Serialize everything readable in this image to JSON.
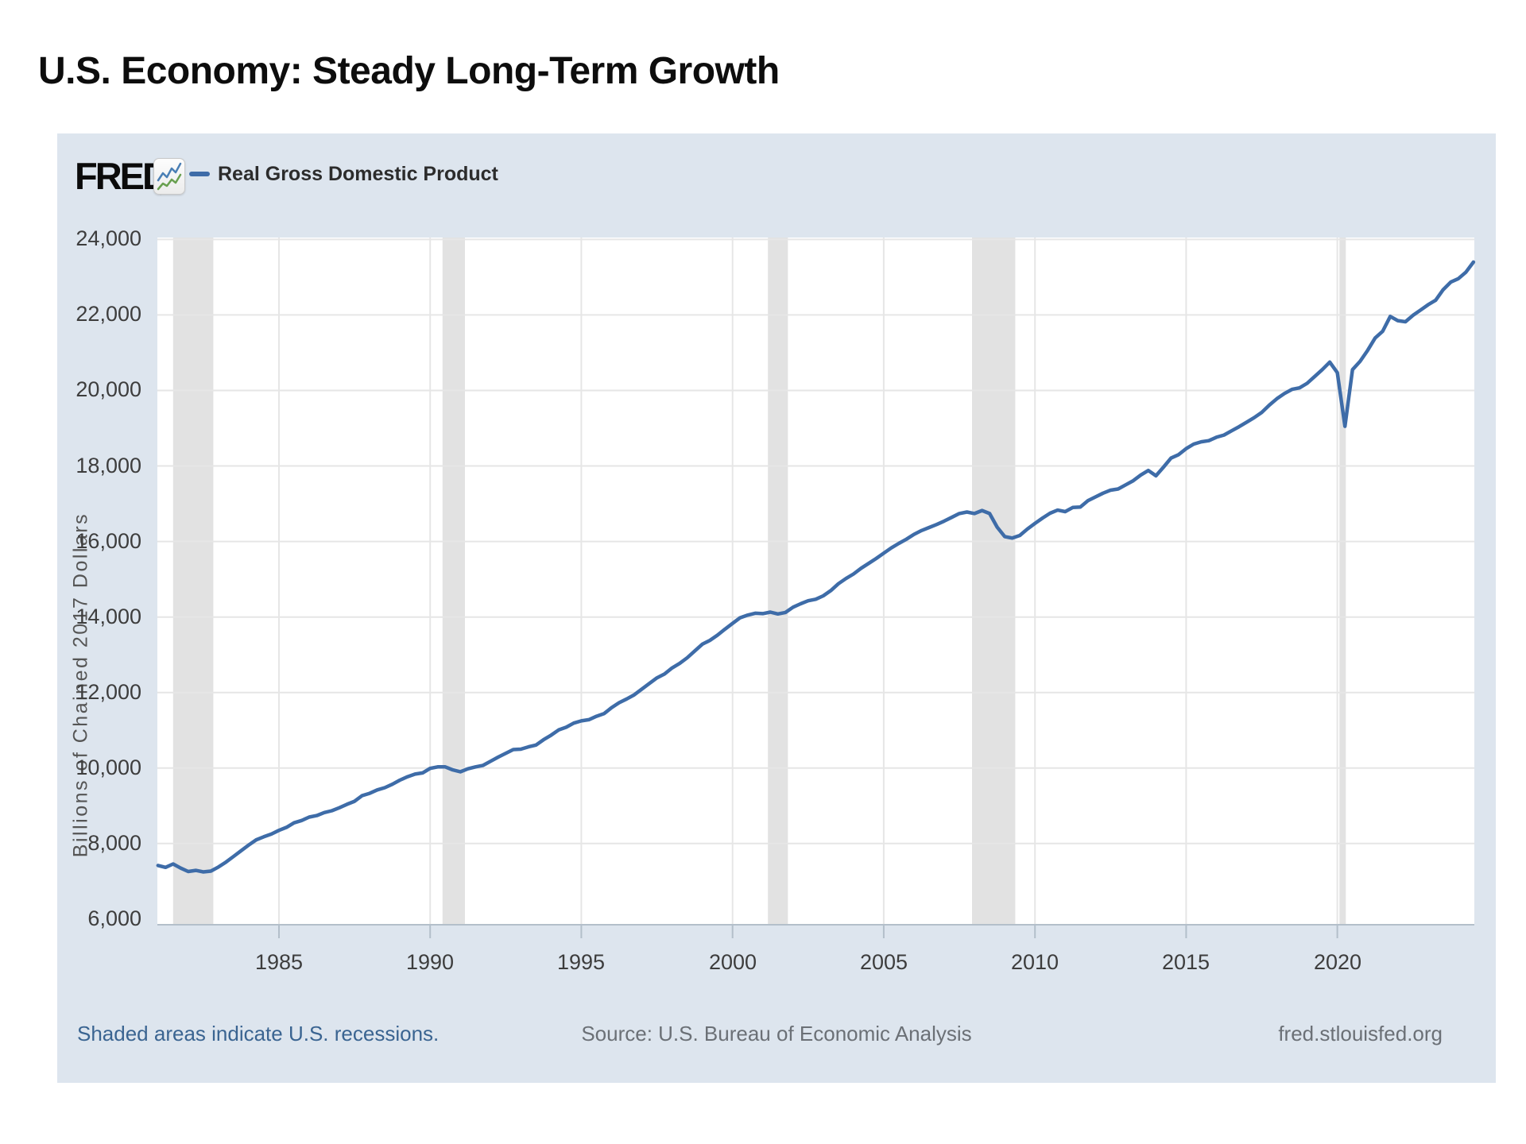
{
  "page": {
    "title": "U.S. Economy: Steady Long-Term Growth"
  },
  "header": {
    "brand": "FRED",
    "registered_mark": "®",
    "legend_label": "Real Gross Domestic Product"
  },
  "footer": {
    "recessions_note": "Shaded areas indicate U.S. recessions.",
    "source": "Source: U.S. Bureau of Economic Analysis",
    "site": "fred.stlouisfed.org"
  },
  "colors": {
    "series_line": "#3e6ca8",
    "chart_background": "#dde5ee",
    "plot_background": "#ffffff",
    "recession_band": "#e2e2e2",
    "gridline": "#e6e6e6",
    "axis_line": "#b3bfca",
    "link_blue": "#3a6491"
  },
  "chart_data": {
    "type": "line",
    "title": "Real Gross Domestic Product",
    "ylabel": "Billions of Chained 2017 Dollars",
    "frequency_hint": "quarterly",
    "legend_position": "top-left",
    "grid": true,
    "xlim": [
      1980.98,
      2024.53
    ],
    "ylim": [
      5850,
      24050
    ],
    "x_ticks": [
      1985,
      1990,
      1995,
      2000,
      2005,
      2010,
      2015,
      2020
    ],
    "y_ticks": [
      6000,
      8000,
      10000,
      12000,
      14000,
      16000,
      18000,
      20000,
      22000,
      24000
    ],
    "y_gridlines": [
      8000,
      10000,
      12000,
      14000,
      16000,
      18000,
      20000,
      22000,
      24000
    ],
    "recession_bands": [
      [
        1981.5,
        1982.83
      ],
      [
        1990.41,
        1991.15
      ],
      [
        2001.17,
        2001.83
      ],
      [
        2007.92,
        2009.35
      ],
      [
        2020.07,
        2020.28
      ]
    ],
    "series": [
      {
        "name": "Real Gross Domestic Product",
        "units": "Billions of Chained 2017 Dollars",
        "points": [
          [
            1981.0,
            7420
          ],
          [
            1981.25,
            7370
          ],
          [
            1981.5,
            7460
          ],
          [
            1981.75,
            7350
          ],
          [
            1982.0,
            7260
          ],
          [
            1982.25,
            7290
          ],
          [
            1982.5,
            7250
          ],
          [
            1982.75,
            7270
          ],
          [
            1983.0,
            7380
          ],
          [
            1983.25,
            7510
          ],
          [
            1983.5,
            7660
          ],
          [
            1983.75,
            7810
          ],
          [
            1984.0,
            7960
          ],
          [
            1984.25,
            8100
          ],
          [
            1984.5,
            8180
          ],
          [
            1984.75,
            8250
          ],
          [
            1985.0,
            8350
          ],
          [
            1985.25,
            8430
          ],
          [
            1985.5,
            8550
          ],
          [
            1985.75,
            8610
          ],
          [
            1986.0,
            8700
          ],
          [
            1986.25,
            8740
          ],
          [
            1986.5,
            8820
          ],
          [
            1986.75,
            8870
          ],
          [
            1987.0,
            8950
          ],
          [
            1987.25,
            9040
          ],
          [
            1987.5,
            9120
          ],
          [
            1987.75,
            9270
          ],
          [
            1988.0,
            9330
          ],
          [
            1988.25,
            9420
          ],
          [
            1988.5,
            9480
          ],
          [
            1988.75,
            9570
          ],
          [
            1989.0,
            9680
          ],
          [
            1989.25,
            9770
          ],
          [
            1989.5,
            9840
          ],
          [
            1989.75,
            9870
          ],
          [
            1990.0,
            9990
          ],
          [
            1990.25,
            10030
          ],
          [
            1990.5,
            10030
          ],
          [
            1990.75,
            9950
          ],
          [
            1991.0,
            9900
          ],
          [
            1991.25,
            9980
          ],
          [
            1991.5,
            10030
          ],
          [
            1991.75,
            10070
          ],
          [
            1992.0,
            10180
          ],
          [
            1992.25,
            10290
          ],
          [
            1992.5,
            10390
          ],
          [
            1992.75,
            10490
          ],
          [
            1993.0,
            10500
          ],
          [
            1993.25,
            10560
          ],
          [
            1993.5,
            10610
          ],
          [
            1993.75,
            10750
          ],
          [
            1994.0,
            10870
          ],
          [
            1994.25,
            11010
          ],
          [
            1994.5,
            11080
          ],
          [
            1994.75,
            11190
          ],
          [
            1995.0,
            11250
          ],
          [
            1995.25,
            11280
          ],
          [
            1995.5,
            11370
          ],
          [
            1995.75,
            11440
          ],
          [
            1996.0,
            11600
          ],
          [
            1996.25,
            11730
          ],
          [
            1996.5,
            11830
          ],
          [
            1996.75,
            11940
          ],
          [
            1997.0,
            12090
          ],
          [
            1997.25,
            12240
          ],
          [
            1997.5,
            12390
          ],
          [
            1997.75,
            12490
          ],
          [
            1998.0,
            12650
          ],
          [
            1998.25,
            12770
          ],
          [
            1998.5,
            12920
          ],
          [
            1998.75,
            13100
          ],
          [
            1999.0,
            13280
          ],
          [
            1999.25,
            13380
          ],
          [
            1999.5,
            13520
          ],
          [
            1999.75,
            13680
          ],
          [
            2000.0,
            13830
          ],
          [
            2000.25,
            13980
          ],
          [
            2000.5,
            14050
          ],
          [
            2000.75,
            14100
          ],
          [
            2001.0,
            14090
          ],
          [
            2001.25,
            14130
          ],
          [
            2001.5,
            14080
          ],
          [
            2001.75,
            14120
          ],
          [
            2002.0,
            14260
          ],
          [
            2002.25,
            14350
          ],
          [
            2002.5,
            14430
          ],
          [
            2002.75,
            14470
          ],
          [
            2003.0,
            14560
          ],
          [
            2003.25,
            14700
          ],
          [
            2003.5,
            14880
          ],
          [
            2003.75,
            15020
          ],
          [
            2004.0,
            15140
          ],
          [
            2004.25,
            15290
          ],
          [
            2004.5,
            15420
          ],
          [
            2004.75,
            15550
          ],
          [
            2005.0,
            15690
          ],
          [
            2005.25,
            15830
          ],
          [
            2005.5,
            15950
          ],
          [
            2005.75,
            16060
          ],
          [
            2006.0,
            16190
          ],
          [
            2006.25,
            16290
          ],
          [
            2006.5,
            16370
          ],
          [
            2006.75,
            16450
          ],
          [
            2007.0,
            16540
          ],
          [
            2007.25,
            16640
          ],
          [
            2007.5,
            16740
          ],
          [
            2007.75,
            16780
          ],
          [
            2008.0,
            16740
          ],
          [
            2008.25,
            16820
          ],
          [
            2008.5,
            16740
          ],
          [
            2008.75,
            16380
          ],
          [
            2009.0,
            16130
          ],
          [
            2009.25,
            16090
          ],
          [
            2009.5,
            16160
          ],
          [
            2009.75,
            16330
          ],
          [
            2010.0,
            16480
          ],
          [
            2010.25,
            16620
          ],
          [
            2010.5,
            16750
          ],
          [
            2010.75,
            16830
          ],
          [
            2011.0,
            16790
          ],
          [
            2011.25,
            16900
          ],
          [
            2011.5,
            16910
          ],
          [
            2011.75,
            17080
          ],
          [
            2012.0,
            17180
          ],
          [
            2012.25,
            17280
          ],
          [
            2012.5,
            17360
          ],
          [
            2012.75,
            17390
          ],
          [
            2013.0,
            17500
          ],
          [
            2013.25,
            17610
          ],
          [
            2013.5,
            17760
          ],
          [
            2013.75,
            17880
          ],
          [
            2014.0,
            17740
          ],
          [
            2014.25,
            17970
          ],
          [
            2014.5,
            18210
          ],
          [
            2014.75,
            18300
          ],
          [
            2015.0,
            18460
          ],
          [
            2015.25,
            18580
          ],
          [
            2015.5,
            18640
          ],
          [
            2015.75,
            18670
          ],
          [
            2016.0,
            18760
          ],
          [
            2016.25,
            18820
          ],
          [
            2016.5,
            18930
          ],
          [
            2016.75,
            19040
          ],
          [
            2017.0,
            19160
          ],
          [
            2017.25,
            19280
          ],
          [
            2017.5,
            19420
          ],
          [
            2017.75,
            19610
          ],
          [
            2018.0,
            19780
          ],
          [
            2018.25,
            19920
          ],
          [
            2018.5,
            20030
          ],
          [
            2018.75,
            20070
          ],
          [
            2019.0,
            20190
          ],
          [
            2019.25,
            20370
          ],
          [
            2019.5,
            20550
          ],
          [
            2019.75,
            20750
          ],
          [
            2020.0,
            20470
          ],
          [
            2020.25,
            19050
          ],
          [
            2020.5,
            20550
          ],
          [
            2020.75,
            20770
          ],
          [
            2021.0,
            21060
          ],
          [
            2021.25,
            21390
          ],
          [
            2021.5,
            21570
          ],
          [
            2021.75,
            21960
          ],
          [
            2022.0,
            21850
          ],
          [
            2022.25,
            21820
          ],
          [
            2022.5,
            21990
          ],
          [
            2022.75,
            22130
          ],
          [
            2023.0,
            22270
          ],
          [
            2023.25,
            22390
          ],
          [
            2023.5,
            22670
          ],
          [
            2023.75,
            22870
          ],
          [
            2024.0,
            22960
          ],
          [
            2024.25,
            23130
          ],
          [
            2024.5,
            23400
          ]
        ]
      }
    ]
  }
}
